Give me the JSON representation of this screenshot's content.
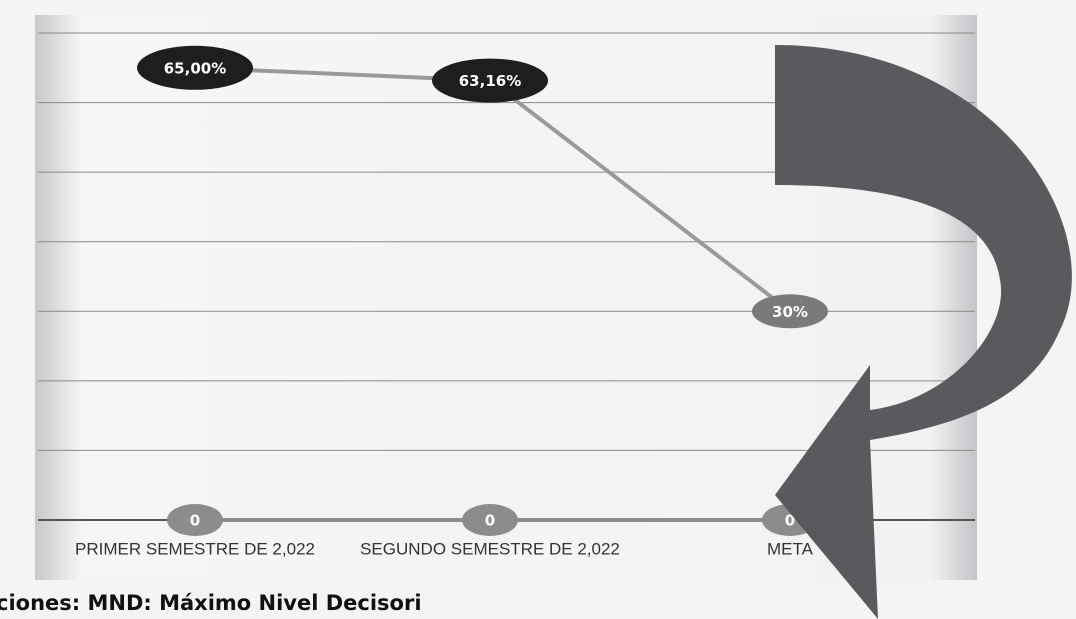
{
  "chart_data": {
    "type": "line",
    "categories": [
      "PRIMER SEMESTRE DE 2,022",
      "SEGUNDO SEMESTRE DE 2,022",
      "META"
    ],
    "series": [
      {
        "color": "#9a9a9a",
        "point_colors": [
          "#1e1e1e",
          "#1e1e1e",
          "#7a7a7a"
        ],
        "values": [
          65,
          63.16,
          30
        ],
        "value_labels": [
          "65,00%",
          "63,16%",
          "30%"
        ]
      },
      {
        "color": "#8c8c8c",
        "point_colors": [
          "#8c8c8c",
          "#8c8c8c",
          "#8c8c8c"
        ],
        "values": [
          0,
          0,
          0
        ]
      }
    ],
    "ylim": [
      0,
      70
    ],
    "yticks": [
      0,
      10,
      20,
      30,
      40,
      50,
      60,
      70
    ],
    "show_ytick_labels": false,
    "grid": true
  },
  "footer": "ciones: MND: Máximo Nivel Decisori"
}
